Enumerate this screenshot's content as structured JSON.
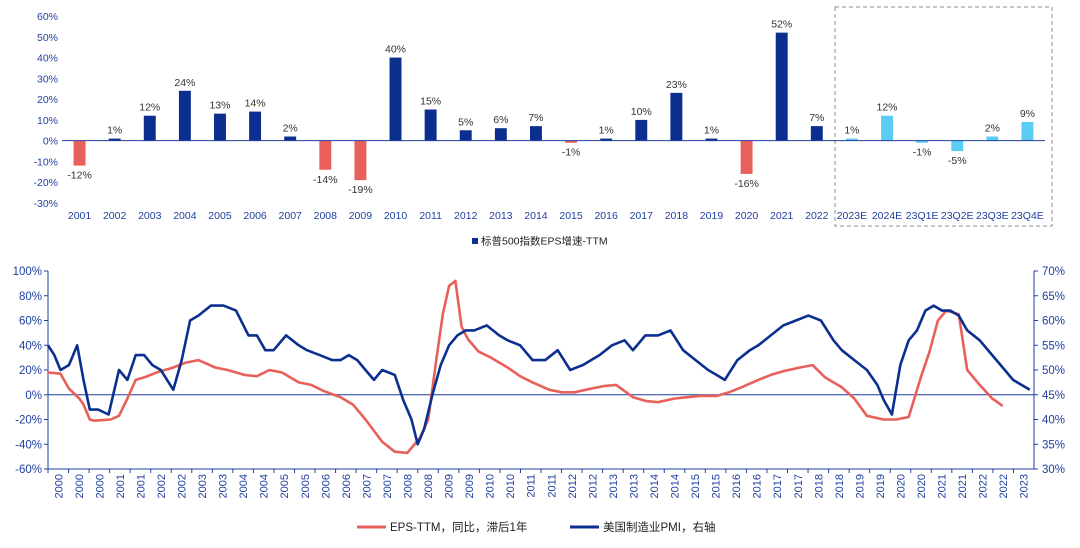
{
  "chart_data": [
    {
      "type": "bar",
      "title": "",
      "xlabel": "",
      "ylabel": "",
      "ylim": [
        -30,
        60
      ],
      "yticks": [
        "60%",
        "50%",
        "40%",
        "30%",
        "20%",
        "10%",
        "0%",
        "-10%",
        "-20%",
        "-30%"
      ],
      "ytick_values": [
        60,
        50,
        40,
        30,
        20,
        10,
        0,
        -10,
        -20,
        -30
      ],
      "legend": {
        "label": "标普500指数EPS增速-TTM",
        "position": "bottom-center"
      },
      "forecast_box": "dashed box around estimates",
      "categories": [
        "2001",
        "2002",
        "2003",
        "2004",
        "2005",
        "2006",
        "2007",
        "2008",
        "2009",
        "2010",
        "2011",
        "2012",
        "2013",
        "2014",
        "2015",
        "2016",
        "2017",
        "2018",
        "2019",
        "2020",
        "2021",
        "2022",
        "2023E",
        "2024E",
        "23Q1E",
        "23Q2E",
        "23Q3E",
        "23Q4E"
      ],
      "values": [
        -12,
        1,
        12,
        24,
        13,
        14,
        2,
        -14,
        -19,
        40,
        15,
        5,
        6,
        7,
        -1,
        1,
        10,
        23,
        1,
        -16,
        52,
        7,
        1,
        12,
        -1,
        -5,
        2,
        9
      ],
      "labels": [
        "-12%",
        "1%",
        "12%",
        "24%",
        "13%",
        "14%",
        "2%",
        "-14%",
        "-19%",
        "40%",
        "15%",
        "5%",
        "6%",
        "7%",
        "-1%",
        "1%",
        "10%",
        "23%",
        "1%",
        "-16%",
        "52%",
        "7%",
        "1%",
        "12%",
        "-1%",
        "-5%",
        "2%",
        "9%"
      ],
      "colors": {
        "positive": "#0b2f8f",
        "negative": "#e8605a",
        "estimate": "#5bcdf5"
      }
    },
    {
      "type": "line",
      "title": "",
      "xlabel": "",
      "ylabel": "",
      "ylim_left": [
        -60,
        100
      ],
      "ylim_right": [
        30,
        70
      ],
      "yticks_left": [
        "100%",
        "80%",
        "60%",
        "40%",
        "20%",
        "0%",
        "-20%",
        "-40%",
        "-60%"
      ],
      "ytick_left_values": [
        100,
        80,
        60,
        40,
        20,
        0,
        -20,
        -40,
        -60
      ],
      "yticks_right": [
        "70%",
        "65%",
        "60%",
        "55%",
        "50%",
        "45%",
        "40%",
        "35%",
        "30%"
      ],
      "ytick_right_values": [
        70,
        65,
        60,
        55,
        50,
        45,
        40,
        35,
        30
      ],
      "xlim": [
        2000,
        2023.6
      ],
      "xticks": [
        "2000",
        "2000",
        "2000",
        "2001",
        "2001",
        "2002",
        "2002",
        "2003",
        "2003",
        "2004",
        "2004",
        "2005",
        "2005",
        "2006",
        "2006",
        "2007",
        "2007",
        "2008",
        "2008",
        "2009",
        "2009",
        "2010",
        "2010",
        "2011",
        "2011",
        "2012",
        "2012",
        "2013",
        "2013",
        "2014",
        "2014",
        "2015",
        "2015",
        "2016",
        "2016",
        "2017",
        "2017",
        "2018",
        "2018",
        "2019",
        "2019",
        "2020",
        "2020",
        "2021",
        "2021",
        "2022",
        "2022",
        "2023"
      ],
      "legend": {
        "position": "bottom-center"
      },
      "series": [
        {
          "name": "EPS-TTM，同比，滞后1年",
          "axis": "left",
          "color": "#e8605a",
          "x": [
            2000.0,
            2000.3,
            2000.5,
            2000.75,
            2000.85,
            2001.0,
            2001.1,
            2001.5,
            2001.7,
            2001.9,
            2002.1,
            2002.3,
            2002.6,
            2003.0,
            2003.3,
            2003.6,
            2004.0,
            2004.3,
            2004.7,
            2005.0,
            2005.3,
            2005.6,
            2006.0,
            2006.3,
            2006.6,
            2007.0,
            2007.3,
            2007.6,
            2008.0,
            2008.3,
            2008.6,
            2008.9,
            2009.1,
            2009.3,
            2009.45,
            2009.6,
            2009.75,
            2009.9,
            2010.05,
            2010.3,
            2010.6,
            2011.0,
            2011.3,
            2011.6,
            2012.0,
            2012.3,
            2012.6,
            2013.0,
            2013.3,
            2013.6,
            2014.0,
            2014.3,
            2014.6,
            2015.0,
            2015.3,
            2015.6,
            2016.0,
            2016.3,
            2016.6,
            2017.0,
            2017.3,
            2017.6,
            2018.0,
            2018.3,
            2018.6,
            2019.0,
            2019.3,
            2019.6,
            2020.0,
            2020.3,
            2020.6,
            2020.9,
            2021.1,
            2021.3,
            2021.5,
            2021.8,
            2022.0,
            2022.3,
            2022.6,
            2022.85
          ],
          "y": [
            18,
            17,
            5,
            -3,
            -8,
            -20,
            -21,
            -20,
            -17,
            -3,
            12,
            14,
            18,
            22,
            26,
            28,
            22,
            20,
            16,
            15,
            20,
            18,
            10,
            8,
            3,
            -2,
            -8,
            -20,
            -38,
            -46,
            -47,
            -35,
            -20,
            30,
            65,
            88,
            92,
            55,
            45,
            35,
            30,
            22,
            15,
            10,
            4,
            2,
            2,
            5,
            7,
            8,
            -2,
            -5,
            -6,
            -3,
            -2,
            -1,
            -1,
            2,
            6,
            12,
            16,
            19,
            22,
            24,
            14,
            6,
            -3,
            -17,
            -20,
            -20,
            -18,
            15,
            35,
            60,
            68,
            65,
            20,
            8,
            -3,
            -9
          ]
        },
        {
          "name": "美国制造业PMI，右轴",
          "axis": "right",
          "color": "#0b2f8f",
          "x": [
            2000.0,
            2000.15,
            2000.3,
            2000.5,
            2000.7,
            2000.85,
            2001.0,
            2001.2,
            2001.45,
            2001.7,
            2001.9,
            2002.1,
            2002.3,
            2002.5,
            2002.7,
            2003.0,
            2003.2,
            2003.4,
            2003.6,
            2003.9,
            2004.2,
            2004.5,
            2004.8,
            2005.0,
            2005.2,
            2005.4,
            2005.7,
            2006.0,
            2006.2,
            2006.5,
            2006.8,
            2007.0,
            2007.2,
            2007.4,
            2007.6,
            2007.8,
            2008.0,
            2008.3,
            2008.5,
            2008.7,
            2008.85,
            2009.0,
            2009.2,
            2009.4,
            2009.6,
            2009.8,
            2010.0,
            2010.2,
            2010.5,
            2010.8,
            2011.0,
            2011.3,
            2011.6,
            2011.9,
            2012.2,
            2012.5,
            2012.8,
            2013.0,
            2013.2,
            2013.5,
            2013.8,
            2014.0,
            2014.3,
            2014.6,
            2014.9,
            2015.2,
            2015.5,
            2015.8,
            2016.0,
            2016.2,
            2016.5,
            2016.8,
            2017.0,
            2017.3,
            2017.6,
            2017.9,
            2018.2,
            2018.5,
            2018.8,
            2019.0,
            2019.3,
            2019.6,
            2019.85,
            2020.0,
            2020.2,
            2020.4,
            2020.6,
            2020.8,
            2021.0,
            2021.2,
            2021.4,
            2021.6,
            2021.8,
            2022.0,
            2022.3,
            2022.6,
            2022.9,
            2023.1,
            2023.3,
            2023.5
          ],
          "y": [
            55,
            53,
            50,
            51,
            55,
            48,
            42,
            42,
            41,
            50,
            48,
            53,
            53,
            51,
            50,
            46,
            52,
            60,
            61,
            63,
            63,
            62,
            57,
            57,
            54,
            54,
            57,
            55,
            54,
            53,
            52,
            52,
            53,
            52,
            50,
            48,
            50,
            49,
            44,
            40,
            35,
            38,
            45,
            51,
            55,
            57,
            58,
            58,
            59,
            57,
            56,
            55,
            52,
            52,
            54,
            50,
            51,
            52,
            53,
            55,
            56,
            54,
            57,
            57,
            58,
            54,
            52,
            50,
            49,
            48,
            52,
            54,
            55,
            57,
            59,
            60,
            61,
            60,
            56,
            54,
            52,
            50,
            47,
            44,
            41,
            51,
            56,
            58,
            62,
            63,
            62,
            62,
            61,
            58,
            56,
            53,
            50,
            48,
            47,
            46
          ]
        }
      ]
    }
  ]
}
